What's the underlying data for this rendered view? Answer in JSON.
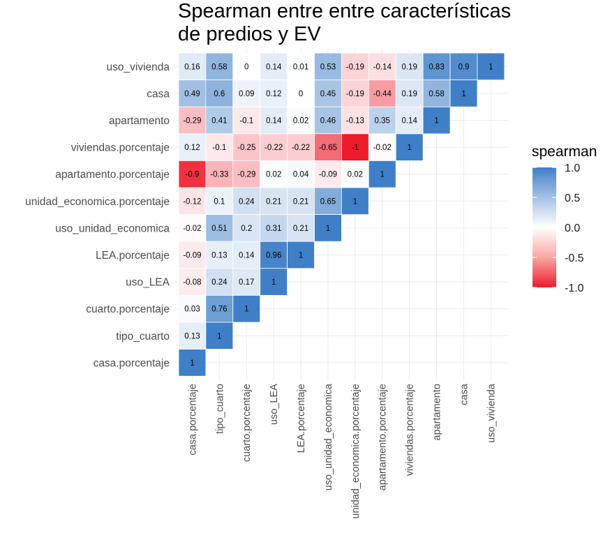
{
  "chart_data": {
    "type": "heatmap",
    "title_lines": [
      "Spearman entre entre características",
      "de predios y EV"
    ],
    "xlabel": "",
    "ylabel": "",
    "x_categories": [
      "casa.porcentaje",
      "tipo_cuarto",
      "cuarto.porcentaje",
      "uso_LEA",
      "LEA.porcentaje",
      "uso_unidad_economica",
      "unidad_economica.porcentaje",
      "apartamento.porcentaje",
      "viviendas.porcentaje",
      "apartamento",
      "casa",
      "uso_vivienda"
    ],
    "y_categories": [
      "uso_vivienda",
      "casa",
      "apartamento",
      "viviendas.porcentaje",
      "apartamento.porcentaje",
      "unidad_economica.porcentaje",
      "uso_unidad_economica",
      "LEA.porcentaje",
      "uso_LEA",
      "cuarto.porcentaje",
      "tipo_cuarto",
      "casa.porcentaje"
    ],
    "cells": [
      [
        0.16,
        0.58,
        0,
        0.14,
        0.01,
        0.53,
        -0.19,
        -0.14,
        0.19,
        0.83,
        0.9,
        1
      ],
      [
        0.49,
        0.6,
        0.09,
        0.12,
        0,
        0.45,
        -0.19,
        -0.44,
        0.19,
        0.58,
        1
      ],
      [
        -0.29,
        0.41,
        -0.1,
        0.14,
        0.02,
        0.46,
        -0.13,
        0.35,
        0.14,
        1
      ],
      [
        0.12,
        -0.1,
        -0.25,
        -0.22,
        -0.22,
        -0.65,
        -1,
        -0.02,
        1
      ],
      [
        -0.9,
        -0.33,
        -0.29,
        0.02,
        0.04,
        -0.09,
        0.02,
        1
      ],
      [
        -0.12,
        0.1,
        0.24,
        0.21,
        0.21,
        0.65,
        1
      ],
      [
        -0.02,
        0.51,
        0.2,
        0.31,
        0.21,
        1
      ],
      [
        -0.09,
        0.13,
        0.14,
        0.96,
        1
      ],
      [
        -0.08,
        0.24,
        0.17,
        1
      ],
      [
        0.03,
        0.76,
        1
      ],
      [
        0.13,
        1
      ],
      [
        1
      ]
    ],
    "legend": {
      "title": "spearman",
      "ticks": [
        1.0,
        0.5,
        0.0,
        -0.5,
        -1.0
      ],
      "tick_labels": [
        "1.0",
        "0.5",
        "0.0",
        "-0.5",
        "-1.0"
      ],
      "placement": "right"
    },
    "colors": {
      "high": "#3f7fc7",
      "mid": "#ffffff",
      "low": "#ee1b2b"
    },
    "scale_range": [
      -1,
      1
    ],
    "grid": true
  }
}
